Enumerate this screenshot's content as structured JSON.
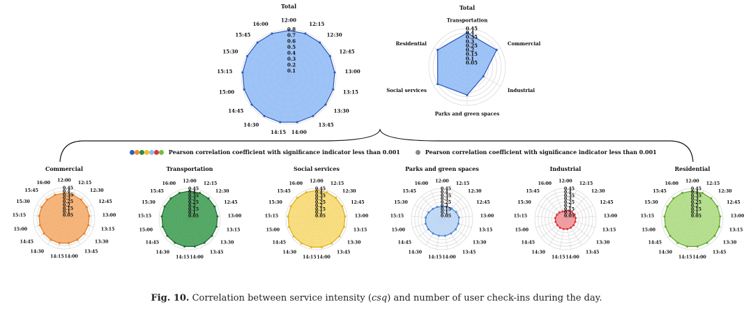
{
  "colors": {
    "total": "#8db8f5",
    "total_line": "#2a55b8",
    "commercial": "#f5a864",
    "transportation": "#3a9a4c",
    "social": "#f0c340",
    "parks": "#9ec4f0",
    "parks_line": "#4a86cf",
    "industrial": "#e0555f",
    "residential": "#7fc243",
    "grid": "#d4d4d4"
  },
  "legend": {
    "significant": {
      "dot_colors": [
        "#2f5fb8",
        "#f08c2c",
        "#2e8b3c",
        "#f0c030",
        "#8fb8ee",
        "#d9363e",
        "#6fbf40"
      ],
      "label": "Pearson correlation coefficient with significance indicator less than 0.001"
    },
    "nonsignificant": {
      "dot_colors": [
        "#888888"
      ],
      "label": "Pearson correlation coefficient with significance indicator less than 0.001"
    }
  },
  "caption": {
    "label": "Fig. 10.",
    "pre": "Correlation between service intensity (",
    "italic": "csq",
    "post": ") and number of user check-ins during the day."
  },
  "chart_data": [
    {
      "type": "radar",
      "title": "Total",
      "categories": [
        "12:00",
        "12:15",
        "12:30",
        "12:45",
        "13:00",
        "13:15",
        "13:30",
        "13:45",
        "14:00",
        "14:15",
        "14:30",
        "14:45",
        "15:00",
        "15:15",
        "15:30",
        "15:45",
        "16:00"
      ],
      "rlim": [
        0,
        0.8
      ],
      "ticks": [
        "0.1",
        "0.2",
        "0.3",
        "0.4",
        "0.5",
        "0.6",
        "0.7",
        "0.8"
      ],
      "values": [
        0.78,
        0.78,
        0.78,
        0.78,
        0.78,
        0.78,
        0.78,
        0.78,
        0.78,
        0.78,
        0.78,
        0.78,
        0.78,
        0.78,
        0.78,
        0.78,
        0.78
      ],
      "fill": "#8db8f5",
      "line": "#2a55b8"
    },
    {
      "type": "radar",
      "title": "Total",
      "categories": [
        "Transportation",
        "Commercial",
        "Industrial",
        "Parks and green spaces",
        "Social services",
        "Residential"
      ],
      "rlim": [
        0,
        0.45
      ],
      "ticks": [
        "0.05",
        "0.1",
        "0.15",
        "0.2",
        "0.25",
        "0.3",
        "0.35",
        "0.4",
        "0.45"
      ],
      "values": [
        0.4,
        0.4,
        0.22,
        0.33,
        0.4,
        0.4
      ],
      "fill": "#8db8f5",
      "line": "#2a55b8"
    },
    {
      "type": "radar",
      "title": "Commercial",
      "categories": [
        "12:00",
        "12:15",
        "12:30",
        "12:45",
        "13:00",
        "13:15",
        "13:30",
        "13:45",
        "14:00",
        "14:15",
        "14:30",
        "14:45",
        "15:00",
        "15:15",
        "15:30",
        "15:45",
        "16:00"
      ],
      "rlim": [
        0,
        0.45
      ],
      "ticks": [
        "0.05",
        "0.1",
        "0.15",
        "0.2",
        "0.25",
        "0.3",
        "0.35",
        "0.4",
        "0.45"
      ],
      "values": [
        0.37,
        0.37,
        0.37,
        0.37,
        0.37,
        0.37,
        0.37,
        0.37,
        0.37,
        0.37,
        0.37,
        0.37,
        0.37,
        0.37,
        0.37,
        0.37,
        0.37
      ],
      "fill": "#f5a864",
      "line": "#e07f28"
    },
    {
      "type": "radar",
      "title": "Transportation",
      "categories": [
        "12:00",
        "12:15",
        "12:30",
        "12:45",
        "13:00",
        "13:15",
        "13:30",
        "13:45",
        "14:00",
        "14:15",
        "14:30",
        "14:45",
        "15:00",
        "15:15",
        "15:30",
        "15:45",
        "16:00"
      ],
      "rlim": [
        0,
        0.45
      ],
      "ticks": [
        "0.05",
        "0.1",
        "0.15",
        "0.2",
        "0.25",
        "0.3",
        "0.35",
        "0.4",
        "0.45"
      ],
      "values": [
        0.41,
        0.41,
        0.41,
        0.41,
        0.41,
        0.41,
        0.41,
        0.41,
        0.41,
        0.41,
        0.41,
        0.41,
        0.41,
        0.41,
        0.41,
        0.41,
        0.41
      ],
      "fill": "#3a9a4c",
      "line": "#1f6b2e"
    },
    {
      "type": "radar",
      "title": "Social services",
      "categories": [
        "12:00",
        "12:15",
        "12:30",
        "12:45",
        "13:00",
        "13:15",
        "13:30",
        "13:45",
        "14:00",
        "14:15",
        "14:30",
        "14:45",
        "15:00",
        "15:15",
        "15:30",
        "15:45",
        "16:00"
      ],
      "rlim": [
        0,
        0.45
      ],
      "ticks": [
        "0.05",
        "0.1",
        "0.15",
        "0.2",
        "0.25",
        "0.3",
        "0.35",
        "0.4",
        "0.45"
      ],
      "values": [
        0.42,
        0.42,
        0.42,
        0.42,
        0.42,
        0.42,
        0.42,
        0.42,
        0.42,
        0.42,
        0.42,
        0.42,
        0.42,
        0.42,
        0.42,
        0.42,
        0.42
      ],
      "fill": "#f7d86a",
      "line": "#e0b020"
    },
    {
      "type": "radar",
      "title": "Parks and green spaces",
      "categories": [
        "12:00",
        "12:15",
        "12:30",
        "12:45",
        "13:00",
        "13:15",
        "13:30",
        "13:45",
        "14:00",
        "14:15",
        "14:30",
        "14:45",
        "15:00",
        "15:15",
        "15:30",
        "15:45",
        "16:00"
      ],
      "rlim": [
        0,
        0.45
      ],
      "ticks": [
        "0.05",
        "0.1",
        "0.15",
        "0.2",
        "0.25",
        "0.3",
        "0.35",
        "0.4",
        "0.45"
      ],
      "values": [
        0.18,
        0.2,
        0.21,
        0.23,
        0.25,
        0.25,
        0.25,
        0.25,
        0.25,
        0.25,
        0.25,
        0.25,
        0.25,
        0.24,
        0.22,
        0.2,
        0.19
      ],
      "fill": "#b9d4f5",
      "line": "#4a86cf"
    },
    {
      "type": "radar",
      "title": "Industrial",
      "categories": [
        "12:00",
        "12:15",
        "12:30",
        "12:45",
        "13:00",
        "13:15",
        "13:30",
        "13:45",
        "14:00",
        "14:15",
        "14:30",
        "14:45",
        "15:00",
        "15:15",
        "15:30",
        "15:45",
        "16:00"
      ],
      "rlim": [
        0,
        0.45
      ],
      "ticks": [
        "0.05",
        "0.1",
        "0.15",
        "0.2",
        "0.25",
        "0.3",
        "0.35",
        "0.4",
        "0.45"
      ],
      "values": [
        0.12,
        0.13,
        0.14,
        0.15,
        0.15,
        0.15,
        0.15,
        0.15,
        0.15,
        0.15,
        0.15,
        0.15,
        0.15,
        0.15,
        0.14,
        0.13,
        0.12
      ],
      "fill": "#ef8e94",
      "line": "#d9363e"
    },
    {
      "type": "radar",
      "title": "Residential",
      "categories": [
        "12:00",
        "12:15",
        "12:30",
        "12:45",
        "13:00",
        "13:15",
        "13:30",
        "13:45",
        "14:00",
        "14:15",
        "14:30",
        "14:45",
        "15:00",
        "15:15",
        "15:30",
        "15:45",
        "16:00"
      ],
      "rlim": [
        0,
        0.45
      ],
      "ticks": [
        "0.05",
        "0.1",
        "0.15",
        "0.2",
        "0.25",
        "0.3",
        "0.35",
        "0.4",
        "0.45"
      ],
      "values": [
        0.41,
        0.41,
        0.41,
        0.41,
        0.41,
        0.41,
        0.41,
        0.41,
        0.41,
        0.41,
        0.41,
        0.41,
        0.41,
        0.41,
        0.41,
        0.41,
        0.41
      ],
      "fill": "#a9d97c",
      "line": "#5ea82c"
    }
  ]
}
